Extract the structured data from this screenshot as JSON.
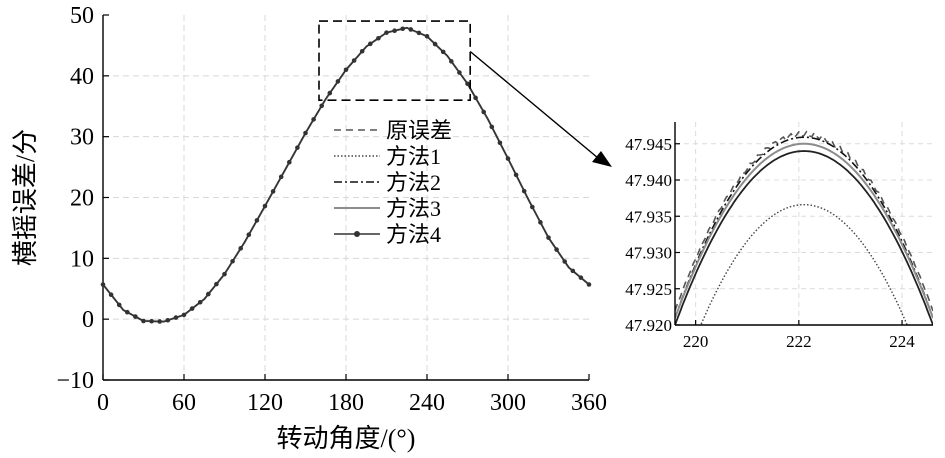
{
  "chart_data": [
    {
      "type": "line",
      "xlabel": "转动角度/(°)",
      "ylabel": "横摇误差/分",
      "xlim": [
        0,
        360
      ],
      "ylim": [
        -10,
        50
      ],
      "xticks": [
        0,
        60,
        120,
        180,
        240,
        300,
        360
      ],
      "xtick_labels": [
        "0",
        "60",
        "120",
        "180",
        "240",
        "300",
        "360"
      ],
      "yticks": [
        -10,
        0,
        10,
        20,
        30,
        40,
        50
      ],
      "ytick_labels": [
        "−10",
        "0",
        "10",
        "20",
        "30",
        "40",
        "50"
      ],
      "grid": true,
      "legend_position": "center",
      "x": [
        0,
        15,
        30,
        45,
        60,
        75,
        90,
        105,
        120,
        135,
        150,
        165,
        180,
        195,
        210,
        225,
        240,
        255,
        270,
        285,
        300,
        315,
        330,
        345,
        360
      ],
      "series": [
        {
          "name": "原误差",
          "style": "dashed",
          "values": [
            5.7,
            1.5,
            -0.3,
            -0.4,
            0.7,
            3.3,
            7.4,
            12.7,
            18.6,
            24.6,
            30.6,
            36.2,
            41.0,
            44.8,
            47.1,
            47.9,
            46.5,
            43.3,
            38.7,
            32.9,
            26.4,
            19.7,
            13.4,
            8.5,
            5.7
          ]
        },
        {
          "name": "方法1",
          "style": "dotted",
          "values": [
            5.7,
            1.5,
            -0.3,
            -0.4,
            0.7,
            3.3,
            7.4,
            12.7,
            18.6,
            24.6,
            30.6,
            36.2,
            41.0,
            44.8,
            47.1,
            47.9,
            46.5,
            43.3,
            38.7,
            32.9,
            26.4,
            19.7,
            13.4,
            8.5,
            5.7
          ]
        },
        {
          "name": "方法2",
          "style": "dash-dot",
          "values": [
            5.7,
            1.5,
            -0.3,
            -0.4,
            0.7,
            3.3,
            7.4,
            12.7,
            18.6,
            24.6,
            30.6,
            36.2,
            41.0,
            44.8,
            47.1,
            47.9,
            46.5,
            43.3,
            38.7,
            32.9,
            26.4,
            19.7,
            13.4,
            8.5,
            5.7
          ]
        },
        {
          "name": "方法3",
          "style": "solid-gray",
          "values": [
            5.7,
            1.5,
            -0.3,
            -0.4,
            0.7,
            3.3,
            7.4,
            12.7,
            18.6,
            24.6,
            30.6,
            36.2,
            41.0,
            44.8,
            47.1,
            47.9,
            46.5,
            43.3,
            38.7,
            32.9,
            26.4,
            19.7,
            13.4,
            8.5,
            5.7
          ]
        },
        {
          "name": "方法4",
          "style": "solid-marker",
          "values": [
            5.7,
            1.5,
            -0.3,
            -0.4,
            0.7,
            3.3,
            7.4,
            12.7,
            18.6,
            24.6,
            30.6,
            36.2,
            41.0,
            44.8,
            47.1,
            47.9,
            46.5,
            43.3,
            38.7,
            32.9,
            26.4,
            19.7,
            13.4,
            8.5,
            5.7
          ]
        }
      ],
      "zoom_box": {
        "x": [
          160,
          272
        ],
        "y": [
          36,
          49
        ]
      }
    },
    {
      "type": "line",
      "xlim": [
        219.6,
        224.6
      ],
      "ylim": [
        47.92,
        47.948
      ],
      "xticks": [
        220,
        222,
        224
      ],
      "xtick_labels": [
        "220",
        "222",
        "224"
      ],
      "yticks": [
        47.92,
        47.925,
        47.93,
        47.935,
        47.94,
        47.945
      ],
      "ytick_labels": [
        "47.920",
        "47.925",
        "47.930",
        "47.935",
        "47.940",
        "47.945"
      ],
      "grid": true,
      "peak_x": 222.1,
      "series": [
        {
          "name": "原误差",
          "style": "dashed",
          "peak": 47.9463,
          "half_width": 2.6
        },
        {
          "name": "方法1",
          "style": "dotted",
          "peak": 47.9366,
          "half_width": 2.0
        },
        {
          "name": "方法2",
          "style": "dash-dot",
          "peak": 47.9459,
          "half_width": 2.55
        },
        {
          "name": "方法3",
          "style": "solid-gray",
          "peak": 47.945,
          "half_width": 2.55
        },
        {
          "name": "方法4",
          "style": "solid",
          "peak": 47.944,
          "half_width": 2.5
        }
      ]
    }
  ]
}
